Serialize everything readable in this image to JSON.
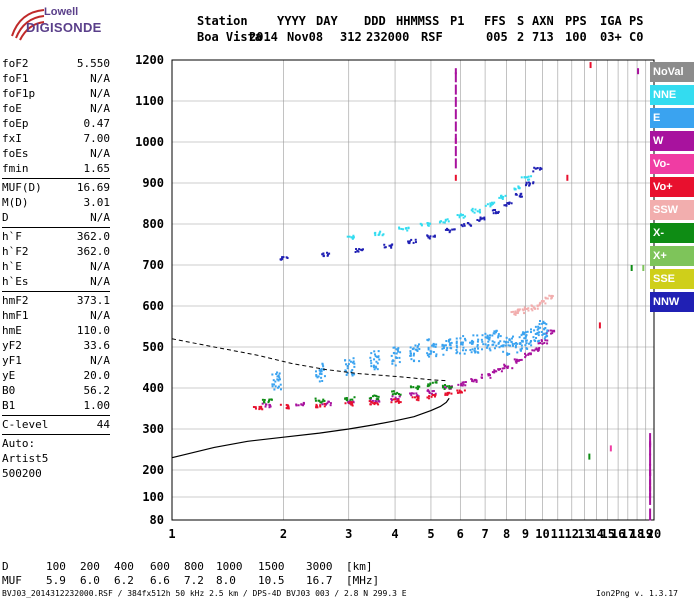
{
  "logo": {
    "line1": "Lowell",
    "line2": "DIGISONDE"
  },
  "header": {
    "row1": [
      "Station",
      "YYYY",
      "DAY",
      "DDD",
      "HHMMSS",
      "P1",
      "FFS",
      "S",
      "AXN",
      "PPS",
      "IGA",
      "PS"
    ],
    "row2": [
      "Boa Vista",
      "2014",
      "Nov08",
      "312",
      "232000",
      "RSF",
      "005",
      "2",
      "713",
      "100",
      "03+",
      "C0"
    ]
  },
  "params": {
    "group1": [
      {
        "name": "foF2",
        "value": "5.550"
      },
      {
        "name": "foF1",
        "value": "N/A"
      },
      {
        "name": "foF1p",
        "value": "N/A"
      },
      {
        "name": "foE",
        "value": "N/A"
      },
      {
        "name": "foEp",
        "value": "0.47"
      },
      {
        "name": "fxI",
        "value": "7.00"
      },
      {
        "name": "foEs",
        "value": "N/A"
      },
      {
        "name": "fmin",
        "value": "1.65"
      }
    ],
    "group2": [
      {
        "name": "MUF(D)",
        "value": "16.69"
      },
      {
        "name": "M(D)",
        "value": "3.01"
      },
      {
        "name": "D",
        "value": "N/A"
      }
    ],
    "group3": [
      {
        "name": "h`F",
        "value": "362.0"
      },
      {
        "name": "h`F2",
        "value": "362.0"
      },
      {
        "name": "h`E",
        "value": "N/A"
      },
      {
        "name": "h`Es",
        "value": "N/A"
      }
    ],
    "group4": [
      {
        "name": "hmF2",
        "value": "373.1"
      },
      {
        "name": "hmF1",
        "value": "N/A"
      },
      {
        "name": "hmE",
        "value": "110.0"
      },
      {
        "name": "yF2",
        "value": "33.6"
      },
      {
        "name": "yF1",
        "value": "N/A"
      },
      {
        "name": "yE",
        "value": "20.0"
      },
      {
        "name": "B0",
        "value": "56.2"
      },
      {
        "name": "B1",
        "value": "1.00"
      }
    ],
    "clevel": {
      "name": "C-level",
      "value": "44"
    },
    "auto": [
      "Auto:",
      "Artist5",
      "500200"
    ]
  },
  "legend": [
    {
      "label": "NoVal",
      "color": "#8c8c8c"
    },
    {
      "label": "NNE",
      "color": "#33dcf0"
    },
    {
      "label": "E",
      "color": "#3aa3f0"
    },
    {
      "label": "W",
      "color": "#a8129e"
    },
    {
      "label": "Vo-",
      "color": "#f03ca3"
    },
    {
      "label": "Vo+",
      "color": "#e8102e"
    },
    {
      "label": "SSW",
      "color": "#f2aeae"
    },
    {
      "label": "X-",
      "color": "#0e8c14"
    },
    {
      "label": "X+",
      "color": "#7ec45a"
    },
    {
      "label": "SSE",
      "color": "#cfcf1a"
    },
    {
      "label": "NNW",
      "color": "#2020b4"
    }
  ],
  "footer": {
    "d_row": [
      "D",
      "100",
      "200",
      "400",
      "600",
      "800",
      "1000",
      "1500",
      "3000",
      "[km]"
    ],
    "muf_row": [
      "MUF",
      "5.9",
      "6.0",
      "6.2",
      "6.6",
      "7.2",
      "8.0",
      "10.5",
      "16.7",
      "[MHz]"
    ],
    "file_line": "BVJ03_2014312232000.RSF / 384fx512h 50 kHz 2.5 km / DPS-4D BVJ03 003 / 2.8 N 299.3 E",
    "version": "Ion2Png v. 1.3.17"
  },
  "chart_data": {
    "type": "scatter",
    "x_ticks": [
      "1",
      "2",
      "3",
      "4",
      "5",
      "6",
      "7",
      "8",
      "9",
      "10",
      "11",
      "12",
      "13",
      "14",
      "15",
      "16",
      "17",
      "18",
      "19",
      "20"
    ],
    "y_ticks": [
      "80",
      "100",
      "200",
      "300",
      "400",
      "500",
      "600",
      "700",
      "800",
      "900",
      "1000",
      "1100",
      "1200"
    ],
    "xlim": [
      1,
      20
    ],
    "ylim": [
      80,
      1200
    ],
    "xscale": "log",
    "grid": true,
    "series": [
      {
        "name": "W",
        "color": "#a8129e",
        "x": [
          1.8,
          2.2,
          2.6,
          3.0,
          3.5,
          4.0,
          4.5,
          5.0,
          5.5,
          6.0,
          6.5,
          7.0,
          7.5,
          8.0,
          8.5,
          9.0,
          9.5,
          10.0,
          10.4
        ],
        "y": [
          360,
          362,
          365,
          368,
          372,
          378,
          385,
          393,
          402,
          412,
          422,
          432,
          444,
          455,
          468,
          482,
          497,
          515,
          540
        ]
      },
      {
        "name": "Vo+",
        "color": "#e8102e",
        "x": [
          1.7,
          2.0,
          2.5,
          3.0,
          3.5,
          4.0,
          4.5,
          5.0,
          5.5,
          6.0
        ],
        "y": [
          355,
          357,
          360,
          363,
          367,
          371,
          376,
          382,
          388,
          395
        ]
      },
      {
        "name": "E",
        "color": "#3aa3f0",
        "x": [
          1.9,
          2.5,
          3.0,
          3.5,
          4.0,
          4.5,
          5.0,
          5.5,
          6.0,
          6.5,
          7.0,
          7.5,
          8.0,
          8.5,
          9.0,
          9.5,
          10.0
        ],
        "y": [
          420,
          440,
          455,
          470,
          480,
          490,
          500,
          505,
          508,
          510,
          515,
          520,
          505,
          510,
          520,
          530,
          545
        ]
      },
      {
        "name": "X-",
        "color": "#0e8c14",
        "x": [
          1.8,
          2.5,
          3.0,
          3.5,
          4.0,
          4.5,
          5.0,
          5.5
        ],
        "y": [
          370,
          372,
          375,
          380,
          390,
          402,
          412,
          405
        ]
      },
      {
        "name": "NNW",
        "color": "#2020b4",
        "x": [
          2.0,
          2.6,
          3.2,
          3.8,
          4.4,
          5.0,
          5.6,
          6.2,
          6.8,
          7.4,
          8.0,
          8.6,
          9.2,
          9.6
        ],
        "y": [
          720,
          728,
          738,
          748,
          760,
          772,
          786,
          800,
          815,
          832,
          850,
          872,
          900,
          935
        ]
      },
      {
        "name": "NNE",
        "color": "#33dcf0",
        "x": [
          3.0,
          3.6,
          4.2,
          4.8,
          5.4,
          6.0,
          6.6,
          7.2,
          7.8,
          8.4,
          9.0
        ],
        "y": [
          770,
          780,
          790,
          800,
          810,
          822,
          835,
          850,
          868,
          890,
          915
        ]
      },
      {
        "name": "SSW",
        "color": "#f2aeae",
        "x": [
          8.3,
          8.7,
          9.1,
          9.5,
          9.9,
          10.3
        ],
        "y": [
          585,
          590,
          595,
          600,
          610,
          625
        ]
      }
    ],
    "trace": {
      "name": "virtual-height-curve",
      "x": [
        1.0,
        1.3,
        1.6,
        2.0,
        2.5,
        3.0,
        3.5,
        4.0,
        4.5,
        5.0,
        5.3,
        5.5,
        5.6
      ],
      "y": [
        230,
        255,
        270,
        280,
        290,
        300,
        310,
        320,
        330,
        345,
        355,
        365,
        375
      ]
    },
    "trace2": {
      "x": [
        1.0,
        1.3,
        1.7,
        2.1,
        2.6,
        3.2,
        3.8,
        4.4,
        5.0,
        5.5
      ],
      "y": [
        520,
        500,
        480,
        460,
        445,
        435,
        430,
        425,
        420,
        418
      ]
    }
  }
}
